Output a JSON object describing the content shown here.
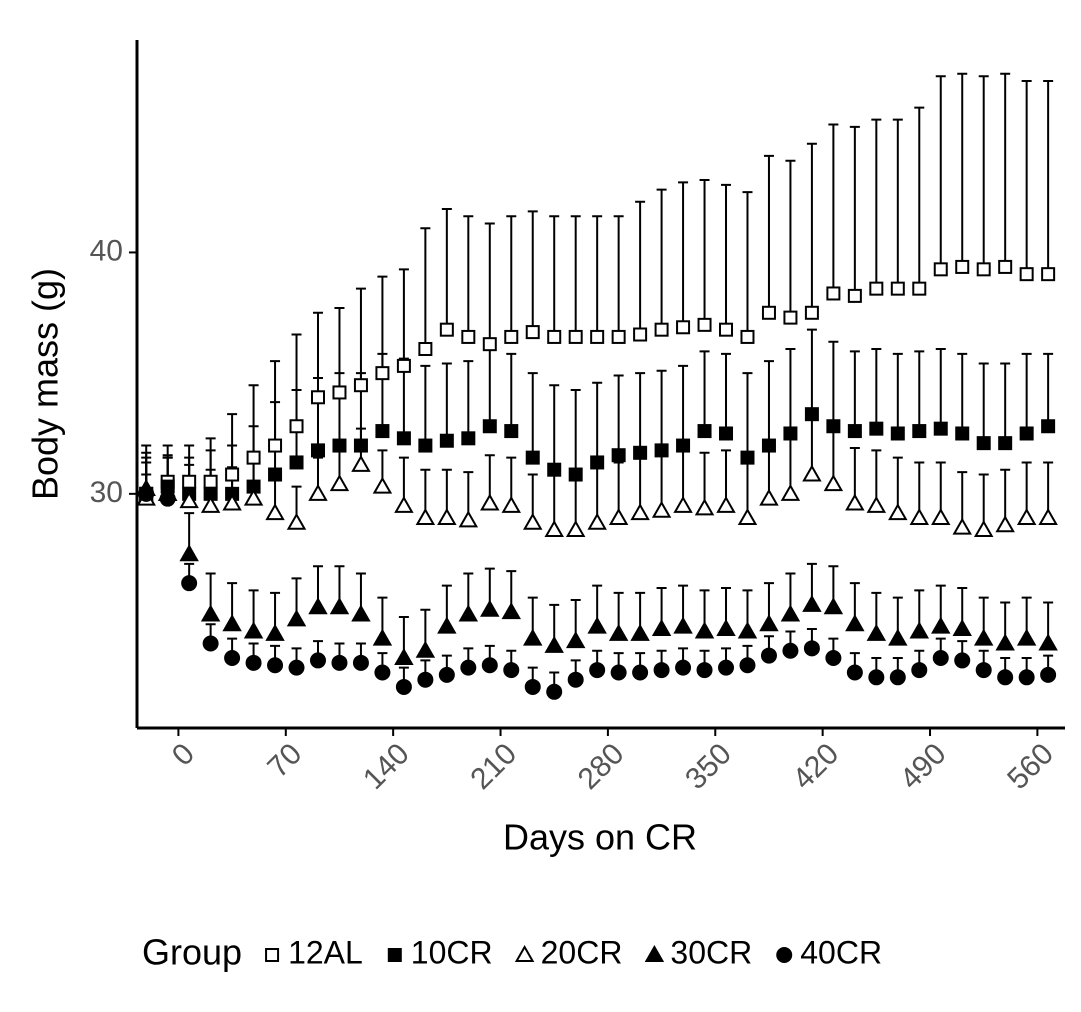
{
  "chart_data": {
    "type": "scatter",
    "xlabel": "Days on CR",
    "ylabel": "Body mass (g)",
    "xlim": [
      -27,
      578
    ],
    "ylim": [
      20.3,
      48.8
    ],
    "xticks": [
      0,
      70,
      140,
      210,
      280,
      350,
      420,
      490,
      560
    ],
    "yticks": [
      30,
      40
    ],
    "legend_title": "Group",
    "legend": "bottom",
    "x": [
      -21,
      -7,
      7,
      21,
      35,
      49,
      63,
      77,
      91,
      105,
      119,
      133,
      147,
      161,
      175,
      189,
      203,
      217,
      231,
      245,
      259,
      273,
      287,
      301,
      315,
      329,
      343,
      357,
      371,
      385,
      399,
      413,
      427,
      441,
      455,
      469,
      483,
      497,
      511,
      525,
      539,
      553,
      567
    ],
    "series": [
      {
        "name": "12AL",
        "color": "#000000",
        "marker": "square",
        "filled": false,
        "values": [
          30,
          30.5,
          30.5,
          30.5,
          30.8,
          31.5,
          32,
          32.8,
          34,
          34.2,
          34.5,
          35,
          35.3,
          36,
          36.8,
          36.5,
          36.2,
          36.5,
          36.7,
          36.5,
          36.5,
          36.5,
          36.5,
          36.6,
          36.8,
          36.9,
          37,
          36.8,
          36.5,
          37.5,
          37.3,
          37.5,
          38.3,
          38.2,
          38.5,
          38.5,
          38.5,
          39.3,
          39.4,
          39.3,
          39.4,
          39.1,
          39.1
        ],
        "errors": [
          2,
          1.5,
          1.5,
          1.8,
          2.5,
          3,
          3.5,
          3.8,
          3.5,
          3.5,
          4,
          4,
          4,
          5,
          5,
          5,
          5,
          5,
          5,
          5,
          5,
          5,
          5,
          5.5,
          5.8,
          6,
          6,
          6,
          6,
          6.5,
          6.5,
          7,
          7,
          7,
          7,
          7,
          7.5,
          8,
          8,
          8,
          8,
          8,
          8
        ]
      },
      {
        "name": "10CR",
        "color": "#000000",
        "marker": "square",
        "filled": true,
        "values": [
          30,
          30.3,
          30,
          30,
          30,
          30.3,
          30.8,
          31.3,
          31.8,
          32,
          32,
          32.6,
          32.3,
          32,
          32.2,
          32.3,
          32.8,
          32.6,
          31.5,
          31,
          30.8,
          31.3,
          31.6,
          31.7,
          31.8,
          32,
          32.6,
          32.5,
          31.5,
          32,
          32.5,
          33.3,
          32.8,
          32.6,
          32.7,
          32.5,
          32.6,
          32.7,
          32.5,
          32.1,
          32.1,
          32.5,
          32.8
        ],
        "errors": [
          1.5,
          1.3,
          1.5,
          1.8,
          2,
          2.5,
          3,
          3,
          3,
          3,
          3,
          3.2,
          3.3,
          3.3,
          3.2,
          3.2,
          3.2,
          3.2,
          3.5,
          3.5,
          3.5,
          3.3,
          3.3,
          3.3,
          3.3,
          3.3,
          3.3,
          3.3,
          3.5,
          3.5,
          3.5,
          3.5,
          3.5,
          3.3,
          3.3,
          3.3,
          3.3,
          3.3,
          3.3,
          3.3,
          3.3,
          3.3,
          3
        ]
      },
      {
        "name": "20CR",
        "color": "#000000",
        "marker": "triangle",
        "filled": false,
        "values": [
          29.8,
          30,
          29.7,
          29.5,
          29.6,
          29.8,
          29.2,
          28.8,
          30,
          30.4,
          31.2,
          30.3,
          29.5,
          29,
          29,
          28.9,
          29.6,
          29.5,
          28.8,
          28.5,
          28.5,
          28.8,
          29,
          29.2,
          29.3,
          29.5,
          29.4,
          29.5,
          29,
          29.8,
          30,
          30.8,
          30.4,
          29.6,
          29.5,
          29.2,
          29,
          29,
          28.6,
          28.5,
          28.7,
          29,
          29
        ],
        "errors": [
          1.5,
          1.5,
          1.5,
          1.5,
          1.5,
          1.5,
          1.5,
          1.5,
          1.5,
          1.5,
          1.5,
          1.5,
          2,
          2,
          2,
          2,
          2,
          2,
          2,
          2.3,
          2.3,
          2.3,
          2.3,
          2.3,
          2.3,
          2.3,
          2.3,
          2.3,
          2.3,
          2.3,
          2.3,
          2.3,
          2.3,
          2.3,
          2.3,
          2.3,
          2.3,
          2.3,
          2.3,
          2.3,
          2.3,
          2.3,
          2.3
        ]
      },
      {
        "name": "30CR",
        "color": "#000000",
        "marker": "triangle",
        "filled": true,
        "values": [
          30.2,
          30,
          27.5,
          25,
          24.6,
          24.3,
          24.2,
          24.8,
          25.3,
          25.3,
          25,
          24,
          23.2,
          23.5,
          24.5,
          25,
          25.2,
          25.1,
          24,
          23.7,
          23.9,
          24.5,
          24.2,
          24.2,
          24.4,
          24.5,
          24.3,
          24.4,
          24.3,
          24.6,
          25,
          25.4,
          25.3,
          24.6,
          24.2,
          24,
          24.3,
          24.5,
          24.4,
          24,
          23.8,
          24,
          23.8
        ],
        "errors": [
          1.5,
          1.5,
          1.7,
          1.7,
          1.7,
          1.7,
          1.7,
          1.7,
          1.7,
          1.7,
          1.7,
          1.7,
          1.7,
          1.7,
          1.7,
          1.7,
          1.7,
          1.7,
          1.7,
          1.7,
          1.7,
          1.7,
          1.7,
          1.7,
          1.7,
          1.7,
          1.7,
          1.7,
          1.7,
          1.7,
          1.7,
          1.7,
          1.7,
          1.7,
          1.7,
          1.7,
          1.7,
          1.7,
          1.7,
          1.7,
          1.7,
          1.7,
          1.7
        ]
      },
      {
        "name": "40CR",
        "color": "#000000",
        "marker": "circle",
        "filled": true,
        "values": [
          30,
          29.8,
          26.3,
          23.8,
          23.2,
          23,
          22.9,
          22.8,
          23.1,
          23,
          23,
          22.6,
          22,
          22.3,
          22.5,
          22.8,
          22.9,
          22.7,
          22,
          21.8,
          22.3,
          22.7,
          22.6,
          22.6,
          22.7,
          22.8,
          22.7,
          22.8,
          22.9,
          23.3,
          23.5,
          23.6,
          23.2,
          22.6,
          22.4,
          22.4,
          22.7,
          23.2,
          23.1,
          22.7,
          22.4,
          22.4,
          22.5
        ],
        "errors": [
          0.8,
          0.8,
          0.8,
          0.8,
          0.8,
          0.8,
          0.8,
          0.8,
          0.8,
          0.8,
          0.8,
          0.8,
          0.8,
          0.8,
          0.8,
          0.8,
          0.8,
          0.8,
          0.8,
          0.8,
          0.8,
          0.8,
          0.8,
          0.8,
          0.8,
          0.8,
          0.8,
          0.8,
          0.8,
          0.8,
          0.8,
          0.8,
          0.8,
          0.8,
          0.8,
          0.8,
          0.8,
          0.8,
          0.8,
          0.8,
          0.8,
          0.8,
          0.8
        ]
      }
    ]
  }
}
